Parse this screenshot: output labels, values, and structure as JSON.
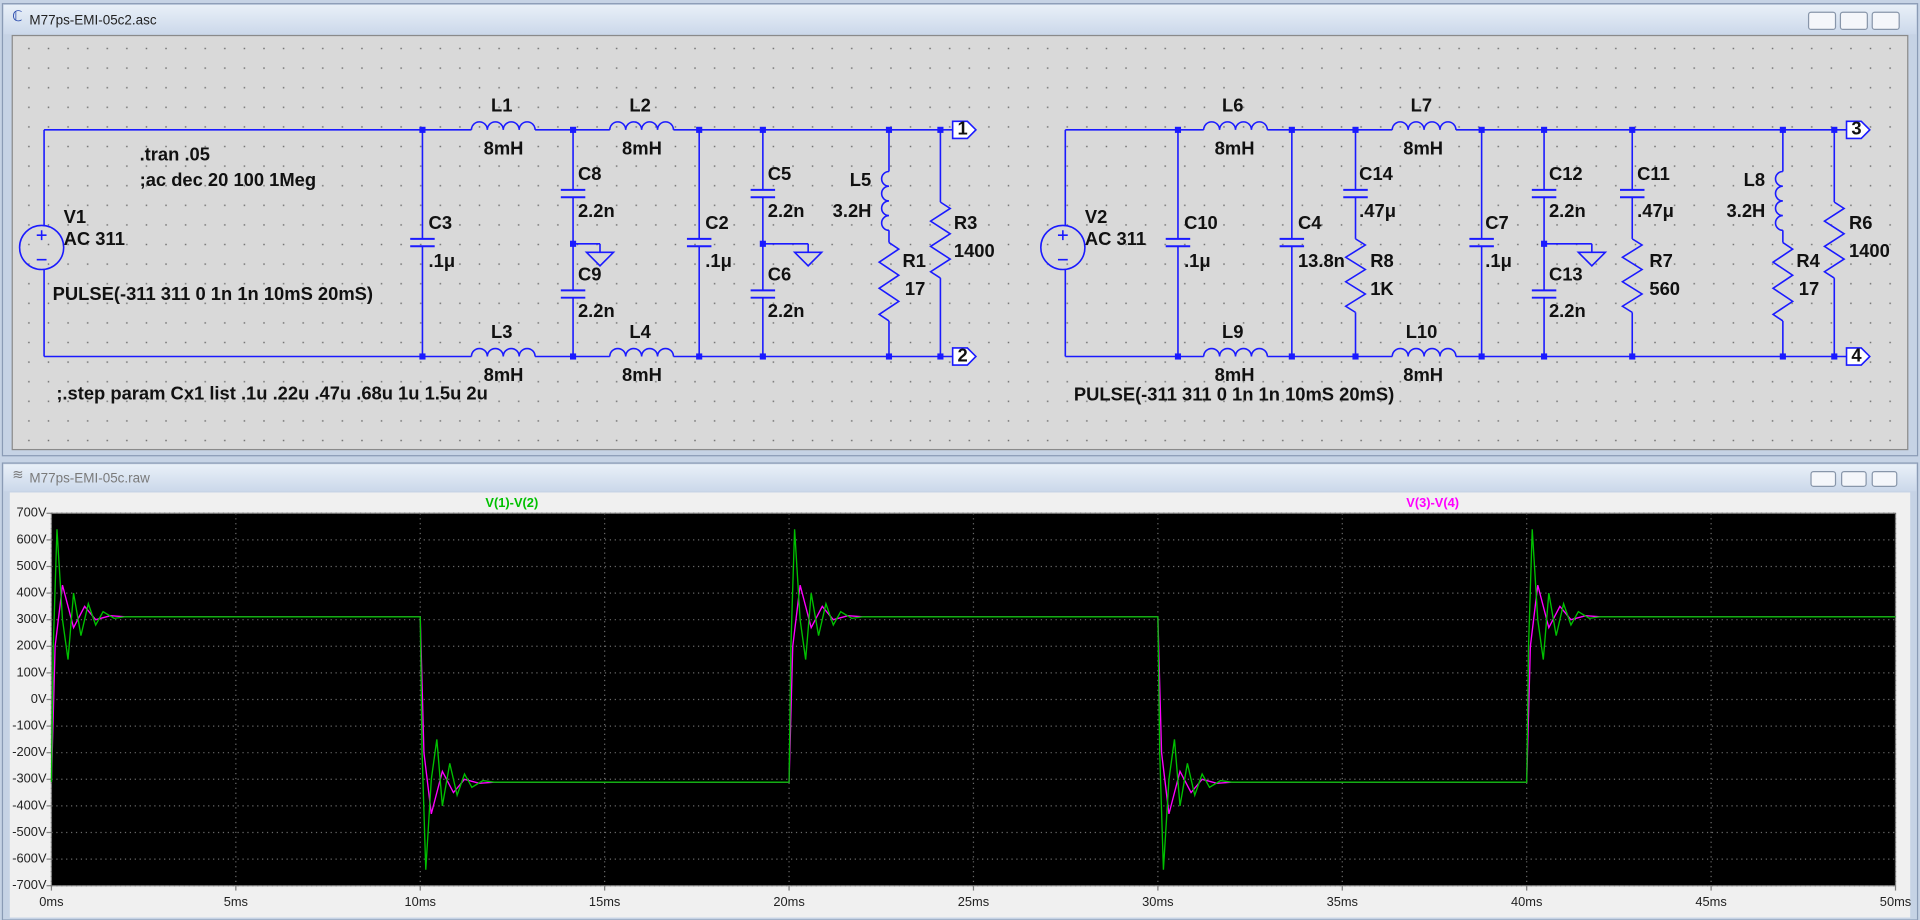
{
  "schematic_window": {
    "title": "M77ps-EMI-05c2.asc",
    "labels": [
      "L1",
      "8mH",
      "L2",
      "8mH",
      ".tran .05",
      ";ac dec 20 100 1Meg",
      "C8",
      "2.2n",
      "C5",
      "2.2n",
      "L5",
      "3.2H",
      "R3",
      "1400",
      "V1",
      "AC 311",
      "C3",
      ".1μ",
      "C2",
      ".1μ",
      "C9",
      "2.2n",
      "C6",
      "2.2n",
      "R1",
      "17",
      "PULSE(-311 311 0 1n 1n 10mS 20mS)",
      "L3",
      "8mH",
      "L4",
      "8mH",
      "1",
      "2",
      ";.step param Cx1 list .1u .22u .47u .68u 1u 1.5u 2u",
      "L6",
      "8mH",
      "L7",
      "8mH",
      "C14",
      ".47μ",
      "C12",
      "2.2n",
      "C11",
      ".47μ",
      "L8",
      "3.2H",
      "V2",
      "AC 311",
      "C10",
      ".1μ",
      "C4",
      "13.8n",
      "C7",
      ".1μ",
      "R6",
      "1400",
      "R8",
      "1K",
      "C13",
      "2.2n",
      "R7",
      "560",
      "R4",
      "17",
      "L9",
      "8mH",
      "L10",
      "8mH",
      "PULSE(-311 311 0 1n 1n 10mS 20mS)",
      "3",
      "4"
    ]
  },
  "plot_window": {
    "title": "M77ps-EMI-05c.raw"
  },
  "chart_data": {
    "type": "line",
    "xlim": [
      0,
      50
    ],
    "xticks": [
      {
        "value": 0,
        "label": "0ms"
      },
      {
        "value": 5,
        "label": "5ms"
      },
      {
        "value": 10,
        "label": "10ms"
      },
      {
        "value": 15,
        "label": "15ms"
      },
      {
        "value": 20,
        "label": "20ms"
      },
      {
        "value": 25,
        "label": "25ms"
      },
      {
        "value": 30,
        "label": "30ms"
      },
      {
        "value": 35,
        "label": "35ms"
      },
      {
        "value": 40,
        "label": "40ms"
      },
      {
        "value": 45,
        "label": "45ms"
      },
      {
        "value": 50,
        "label": "50ms"
      }
    ],
    "ylim": [
      -700,
      700
    ],
    "yticks": [
      {
        "value": 700,
        "label": "700V"
      },
      {
        "value": 600,
        "label": "600V"
      },
      {
        "value": 500,
        "label": "500V"
      },
      {
        "value": 400,
        "label": "400V"
      },
      {
        "value": 300,
        "label": "300V"
      },
      {
        "value": 200,
        "label": "200V"
      },
      {
        "value": 100,
        "label": "100V"
      },
      {
        "value": 0,
        "label": "0V"
      },
      {
        "value": -100,
        "label": "-100V"
      },
      {
        "value": -200,
        "label": "-200V"
      },
      {
        "value": -300,
        "label": "-300V"
      },
      {
        "value": -400,
        "label": "-400V"
      },
      {
        "value": -500,
        "label": "-500V"
      },
      {
        "value": -600,
        "label": "-600V"
      },
      {
        "value": -700,
        "label": "-700V"
      }
    ],
    "grid": true,
    "series": [
      {
        "name": "V(1)-V(2)",
        "color": "#00c000",
        "x": [
          0,
          0.05,
          0.15,
          0.3,
          0.45,
          0.6,
          0.8,
          1,
          1.2,
          1.4,
          1.7,
          2,
          10,
          10.05,
          10.15,
          10.3,
          10.45,
          10.6,
          10.8,
          11,
          11.2,
          11.4,
          11.7,
          12,
          20,
          20.05,
          20.15,
          20.3,
          20.45,
          20.6,
          20.8,
          21,
          21.2,
          21.4,
          21.7,
          22,
          30,
          30.05,
          30.15,
          30.3,
          30.45,
          30.6,
          30.8,
          31,
          31.2,
          31.4,
          31.7,
          32,
          40,
          40.05,
          40.15,
          40.3,
          40.45,
          40.6,
          40.8,
          41,
          41.2,
          41.4,
          41.7,
          42,
          50
        ],
        "values": [
          -311,
          200,
          640,
          300,
          150,
          400,
          240,
          360,
          280,
          330,
          305,
          311,
          311,
          -200,
          -640,
          -300,
          -150,
          -400,
          -240,
          -360,
          -280,
          -330,
          -305,
          -311,
          -311,
          200,
          640,
          300,
          150,
          400,
          240,
          360,
          280,
          330,
          305,
          311,
          311,
          -200,
          -640,
          -300,
          -150,
          -400,
          -240,
          -360,
          -280,
          -330,
          -305,
          -311,
          -311,
          200,
          640,
          300,
          150,
          400,
          240,
          360,
          280,
          330,
          305,
          311,
          311
        ]
      },
      {
        "name": "V(3)-V(4)",
        "color": "#ff00ff",
        "x": [
          0,
          0.1,
          0.3,
          0.6,
          0.9,
          1.2,
          1.6,
          2,
          10,
          10.1,
          10.3,
          10.6,
          10.9,
          11.2,
          11.6,
          12,
          20,
          20.1,
          20.3,
          20.6,
          20.9,
          21.2,
          21.6,
          22,
          30,
          30.1,
          30.3,
          30.6,
          30.9,
          31.2,
          31.6,
          32,
          40,
          40.1,
          40.3,
          40.6,
          40.9,
          41.2,
          41.6,
          42,
          50
        ],
        "values": [
          -311,
          200,
          430,
          270,
          350,
          300,
          315,
          311,
          311,
          -200,
          -430,
          -270,
          -350,
          -300,
          -315,
          -311,
          -311,
          200,
          430,
          270,
          350,
          300,
          315,
          311,
          311,
          -200,
          -430,
          -270,
          -350,
          -300,
          -315,
          -311,
          -311,
          200,
          430,
          270,
          350,
          300,
          315,
          311,
          311
        ]
      }
    ]
  }
}
